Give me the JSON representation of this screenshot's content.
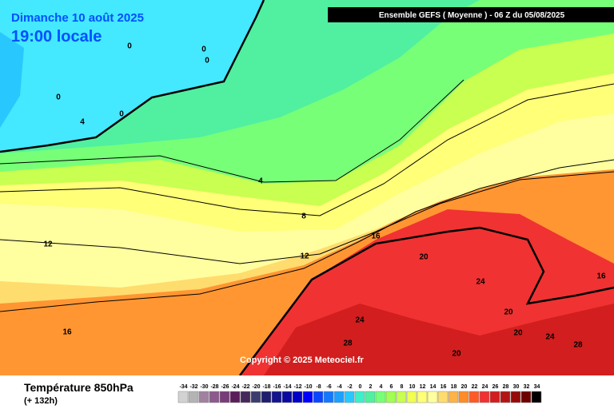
{
  "header": {
    "date": "Dimanche 10 août 2025",
    "time": "19:00 locale",
    "run": "Ensemble GEFS  ( Moyenne )  -  06 Z du 05/08/2025"
  },
  "copyright": "Copyright © 2025 Meteociel.fr",
  "footer": {
    "variable": "Température 850hPa",
    "lead": "(+ 132h)"
  },
  "contour_labels": [
    "0",
    "0",
    "0",
    "0",
    "0",
    "4",
    "4",
    "8",
    "12",
    "12",
    "16",
    "16",
    "16",
    "20",
    "24",
    "24",
    "24",
    "28",
    "28",
    "20",
    "20",
    "20"
  ],
  "legend": {
    "values": [
      -34,
      -32,
      -30,
      -28,
      -26,
      -24,
      -22,
      -20,
      -18,
      -16,
      -14,
      -12,
      -10,
      -8,
      -6,
      -4,
      -2,
      0,
      2,
      4,
      6,
      8,
      10,
      12,
      14,
      16,
      18,
      20,
      22,
      24,
      26,
      28,
      30,
      32,
      34
    ],
    "colors": [
      "#d2d2d2",
      "#b4b4b4",
      "#a082a0",
      "#8c5a8c",
      "#783c78",
      "#5a1e5a",
      "#46285a",
      "#3c3c6e",
      "#1e1e6e",
      "#14148c",
      "#0a0aa0",
      "#0000c8",
      "#0000ff",
      "#0a46ff",
      "#1478ff",
      "#1ea0ff",
      "#28c8ff",
      "#3cf0c8",
      "#50f0a0",
      "#78ff78",
      "#a0ff50",
      "#c8ff50",
      "#f0ff50",
      "#ffff78",
      "#ffffa0",
      "#ffdc6e",
      "#ffb446",
      "#ff8c28",
      "#ff5a28",
      "#f03232",
      "#d21e1e",
      "#b41414",
      "#960a0a",
      "#6e0000",
      "#000000"
    ]
  }
}
